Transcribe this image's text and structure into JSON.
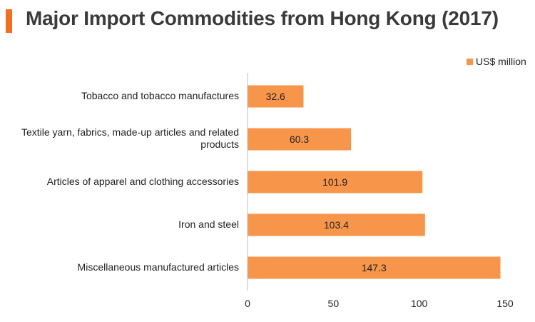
{
  "title": "Major Import Commodities from Hong Kong (2017)",
  "legend": {
    "label": "US$ million",
    "color": "#f7964a"
  },
  "chart_data": {
    "type": "bar",
    "orientation": "horizontal",
    "title": "Major Import Commodities from Hong Kong (2017)",
    "categories": [
      "Tobacco and tobacco manufactures",
      "Textile yarn, fabrics, made-up articles and related products",
      "Articles of apparel and clothing accessories",
      "Iron and steel",
      "Miscellaneous manufactured articles"
    ],
    "series": [
      {
        "name": "US$ million",
        "values": [
          32.6,
          60.3,
          101.9,
          103.4,
          147.3
        ],
        "color": "#f7964a"
      }
    ],
    "data_labels": [
      "32.6",
      "60.3",
      "101.9",
      "103.4",
      "147.3"
    ],
    "xlim": [
      0,
      150
    ],
    "xticks": [
      "0",
      "50",
      "100",
      "150"
    ],
    "grid": false,
    "legend_position": "top-right"
  }
}
